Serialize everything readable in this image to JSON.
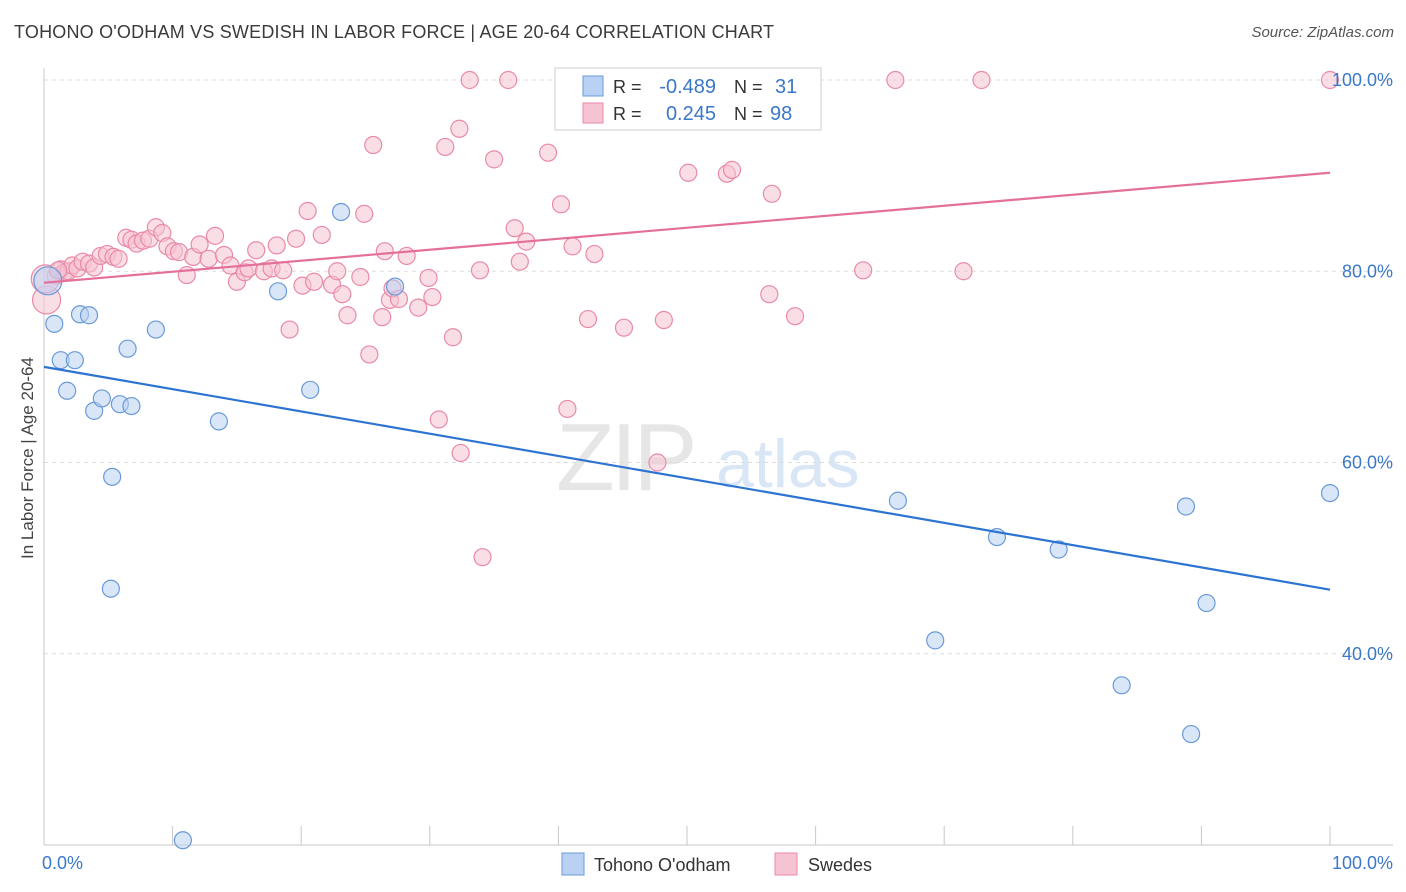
{
  "title": "TOHONO O'ODHAM VS SWEDISH IN LABOR FORCE | AGE 20-64 CORRELATION CHART",
  "source": "Source: ZipAtlas.com",
  "watermark": {
    "zip": "ZIP",
    "atlas": "atlas"
  },
  "legend_box": {
    "rows": [
      {
        "r_label": "R =",
        "r_value": "-0.489",
        "n_label": "N =",
        "n_value": "31"
      },
      {
        "r_label": "R =",
        "r_value": "0.245",
        "n_label": "N =",
        "n_value": "98"
      }
    ]
  },
  "bottom_legend": [
    "Tohono O'odham",
    "Swedes"
  ],
  "colors": {
    "blue_fill": "#b9d1f3",
    "blue_stroke": "#6a9ad8",
    "blue_line": "#2d74d2",
    "pink_fill": "#f6c3d2",
    "pink_stroke": "#e98aa8",
    "pink_line": "#e4709a",
    "value_text": "#3a78c9",
    "grid": "#dddddd"
  },
  "chart_data": {
    "type": "scatter",
    "xlabel": "",
    "ylabel": "In Labor Force | Age 20-64",
    "x_tick_labels": [
      "0.0%",
      "100.0%"
    ],
    "y_tick_labels": [
      "40.0%",
      "60.0%",
      "80.0%",
      "100.0%"
    ],
    "xlim": [
      0,
      100
    ],
    "ylim": [
      20,
      102
    ],
    "grid": true,
    "legend": "bottom",
    "series": [
      {
        "name": "Tohono O'odham",
        "r": -0.489,
        "n": 31,
        "trend": [
          [
            0,
            70.0
          ],
          [
            100,
            46.7
          ]
        ],
        "points": [
          [
            0.3,
            79.0
          ],
          [
            0.8,
            74.5
          ],
          [
            1.3,
            70.7
          ],
          [
            1.8,
            67.5
          ],
          [
            2.4,
            70.7
          ],
          [
            2.8,
            75.5
          ],
          [
            3.5,
            75.4
          ],
          [
            3.9,
            65.4
          ],
          [
            4.5,
            66.7
          ],
          [
            5.3,
            58.5
          ],
          [
            5.2,
            46.8
          ],
          [
            5.9,
            66.1
          ],
          [
            6.5,
            71.9
          ],
          [
            6.8,
            65.9
          ],
          [
            8.7,
            73.9
          ],
          [
            10.8,
            20.5
          ],
          [
            13.6,
            64.3
          ],
          [
            18.2,
            77.9
          ],
          [
            20.7,
            67.6
          ],
          [
            23.1,
            86.2
          ],
          [
            27.3,
            78.4
          ],
          [
            47.6,
            100.0
          ],
          [
            66.4,
            56.0
          ],
          [
            69.3,
            41.4
          ],
          [
            74.1,
            52.2
          ],
          [
            78.9,
            50.9
          ],
          [
            83.8,
            36.7
          ],
          [
            88.8,
            55.4
          ],
          [
            89.2,
            31.6
          ],
          [
            90.4,
            45.3
          ],
          [
            100.0,
            56.8
          ]
        ]
      },
      {
        "name": "Swedes",
        "r": 0.245,
        "n": 98,
        "trend": [
          [
            0,
            78.8
          ],
          [
            100,
            90.3
          ]
        ],
        "points": [
          [
            0.2,
            77.0
          ],
          [
            0.9,
            79.5
          ],
          [
            1.3,
            80.2
          ],
          [
            1.6,
            79.9
          ],
          [
            1.9,
            80.0
          ],
          [
            2.2,
            80.6
          ],
          [
            2.6,
            80.3
          ],
          [
            3.0,
            81.0
          ],
          [
            3.5,
            80.8
          ],
          [
            3.9,
            80.4
          ],
          [
            4.4,
            81.6
          ],
          [
            4.9,
            81.8
          ],
          [
            5.4,
            81.5
          ],
          [
            5.8,
            81.3
          ],
          [
            6.4,
            83.5
          ],
          [
            6.8,
            83.3
          ],
          [
            7.2,
            82.9
          ],
          [
            7.7,
            83.2
          ],
          [
            8.2,
            83.4
          ],
          [
            8.7,
            84.6
          ],
          [
            9.2,
            84.0
          ],
          [
            9.6,
            82.6
          ],
          [
            10.1,
            82.1
          ],
          [
            10.5,
            82.0
          ],
          [
            11.1,
            79.6
          ],
          [
            11.6,
            81.5
          ],
          [
            12.1,
            82.8
          ],
          [
            12.8,
            81.3
          ],
          [
            13.3,
            83.7
          ],
          [
            14.0,
            81.7
          ],
          [
            14.5,
            80.6
          ],
          [
            15.0,
            78.9
          ],
          [
            15.6,
            79.9
          ],
          [
            15.9,
            80.3
          ],
          [
            16.5,
            82.2
          ],
          [
            17.1,
            80.0
          ],
          [
            17.7,
            80.3
          ],
          [
            18.1,
            82.7
          ],
          [
            18.6,
            80.1
          ],
          [
            19.1,
            73.9
          ],
          [
            19.6,
            83.4
          ],
          [
            20.1,
            78.5
          ],
          [
            20.5,
            86.3
          ],
          [
            21.0,
            78.9
          ],
          [
            21.6,
            83.8
          ],
          [
            22.4,
            78.6
          ],
          [
            22.8,
            80.0
          ],
          [
            23.2,
            77.6
          ],
          [
            23.6,
            75.4
          ],
          [
            24.6,
            79.4
          ],
          [
            24.9,
            86.0
          ],
          [
            25.3,
            71.3
          ],
          [
            25.6,
            93.2
          ],
          [
            26.3,
            75.2
          ],
          [
            26.5,
            82.1
          ],
          [
            26.9,
            77.0
          ],
          [
            27.1,
            78.2
          ],
          [
            27.6,
            77.1
          ],
          [
            28.2,
            81.6
          ],
          [
            29.1,
            76.2
          ],
          [
            29.9,
            79.3
          ],
          [
            30.2,
            77.3
          ],
          [
            30.7,
            64.5
          ],
          [
            31.2,
            93.0
          ],
          [
            31.8,
            73.1
          ],
          [
            32.3,
            94.9
          ],
          [
            32.4,
            61.0
          ],
          [
            33.1,
            100.0
          ],
          [
            33.9,
            80.1
          ],
          [
            34.1,
            50.1
          ],
          [
            35.0,
            91.7
          ],
          [
            36.1,
            100.0
          ],
          [
            36.6,
            84.5
          ],
          [
            37.0,
            81.0
          ],
          [
            37.5,
            83.1
          ],
          [
            39.2,
            92.4
          ],
          [
            40.2,
            87.0
          ],
          [
            40.7,
            65.6
          ],
          [
            41.1,
            82.6
          ],
          [
            42.3,
            75.0
          ],
          [
            42.8,
            81.8
          ],
          [
            43.6,
            100.0
          ],
          [
            45.1,
            74.1
          ],
          [
            47.7,
            60.0
          ],
          [
            48.2,
            74.9
          ],
          [
            50.1,
            90.3
          ],
          [
            53.1,
            90.2
          ],
          [
            53.5,
            90.6
          ],
          [
            56.4,
            77.6
          ],
          [
            56.6,
            88.1
          ],
          [
            58.4,
            75.3
          ],
          [
            63.7,
            80.1
          ],
          [
            66.2,
            100.0
          ],
          [
            71.5,
            80.0
          ],
          [
            72.9,
            100.0
          ],
          [
            100.0,
            100.0
          ],
          [
            0.1,
            79.2
          ],
          [
            1.1,
            80.1
          ]
        ]
      }
    ]
  }
}
